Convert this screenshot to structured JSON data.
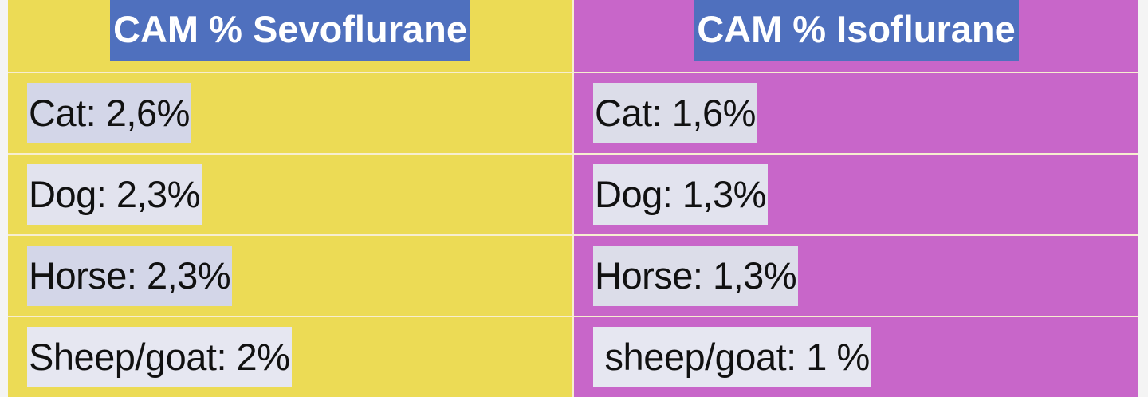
{
  "table": {
    "headers": [
      "CAM % Sevoflurane",
      "CAM % Isoflurane"
    ],
    "rows": [
      [
        "Cat:  2,6%",
        "Cat: 1,6%"
      ],
      [
        "Dog: 2,3%",
        "Dog: 1,3%"
      ],
      [
        "Horse: 2,3%",
        "Horse: 1,3%"
      ],
      [
        "Sheep/goat: 2%",
        " sheep/goat: 1 %"
      ]
    ]
  },
  "colors": {
    "sevoflurane_column": "#ecdb55",
    "isoflurane_column": "#c866c9",
    "header_highlight": "#4f70be",
    "text_highlight": "#d3d6e8"
  }
}
